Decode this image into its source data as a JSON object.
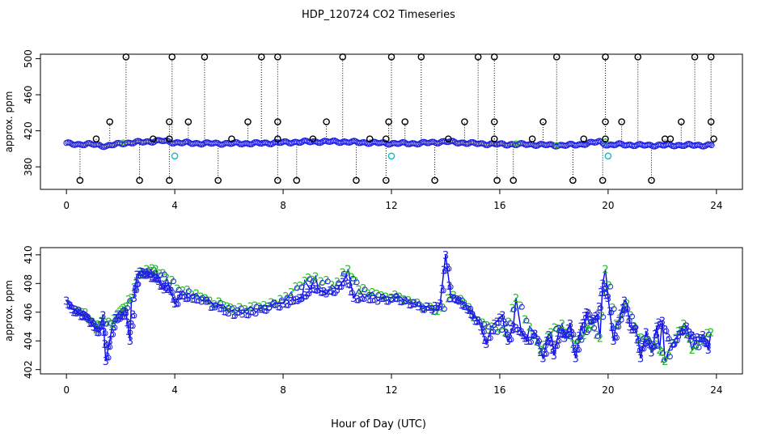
{
  "title": "HDP_120724  CO2 Timeseries",
  "xlabel": "Hour of Day (UTC)",
  "colors": {
    "ch2": "#22bb22",
    "ch3": "#2020e0",
    "line": "#0000ff",
    "outlier": "#000000",
    "cal": "#11bbbb"
  },
  "chart_data": [
    {
      "type": "scatter",
      "name": "top-panel",
      "ylabel": "approx. ppm",
      "xlim": [
        0,
        24
      ],
      "ylim": [
        360,
        500
      ],
      "xticks": [
        0,
        4,
        8,
        12,
        16,
        20,
        24
      ],
      "yticks": [
        380,
        420,
        460,
        500
      ],
      "baseline": [
        [
          0,
          406
        ],
        [
          0.5,
          405
        ],
        [
          1,
          405
        ],
        [
          1.5,
          403
        ],
        [
          2,
          406
        ],
        [
          2.5,
          407
        ],
        [
          3,
          408
        ],
        [
          3.5,
          409
        ],
        [
          4,
          407
        ],
        [
          5,
          406
        ],
        [
          6,
          406
        ],
        [
          7,
          406
        ],
        [
          8,
          407
        ],
        [
          9,
          408
        ],
        [
          10,
          408
        ],
        [
          11,
          407
        ],
        [
          12,
          406
        ],
        [
          13,
          406
        ],
        [
          14,
          408
        ],
        [
          15,
          406
        ],
        [
          16,
          405
        ],
        [
          17,
          405
        ],
        [
          18,
          404
        ],
        [
          18.5,
          404
        ],
        [
          19,
          405
        ],
        [
          19.7,
          408
        ],
        [
          20,
          404
        ],
        [
          20.5,
          405
        ],
        [
          21,
          404
        ],
        [
          22,
          404
        ],
        [
          23,
          404
        ],
        [
          23.8,
          404
        ]
      ],
      "outliers_high": [
        2.2,
        3.9,
        5.1,
        7.2,
        7.8,
        10.2,
        12.0,
        13.1,
        15.2,
        15.8,
        18.1,
        19.9,
        21.1,
        23.2,
        23.8
      ],
      "outliers_430": [
        1.6,
        3.8,
        4.5,
        6.7,
        7.8,
        9.6,
        11.9,
        12.5,
        14.7,
        15.8,
        17.6,
        19.9,
        20.5,
        22.7,
        23.8
      ],
      "outliers_low": [
        0.5,
        2.7,
        3.8,
        5.6,
        7.8,
        8.5,
        10.7,
        11.8,
        13.6,
        15.9,
        16.5,
        18.7,
        19.8,
        21.6
      ],
      "outliers_mid": [
        1.1,
        3.2,
        3.8,
        6.1,
        7.8,
        9.1,
        11.2,
        11.8,
        14.1,
        15.8,
        17.2,
        19.1,
        19.9,
        22.1,
        22.3,
        23.9
      ],
      "cal_points": [
        [
          4.0,
          392
        ],
        [
          12.0,
          392
        ],
        [
          20.0,
          392
        ]
      ]
    },
    {
      "type": "line",
      "name": "bottom-panel",
      "ylabel": "approx. ppm",
      "xlim": [
        0,
        24
      ],
      "ylim": [
        402,
        410
      ],
      "xticks": [
        0,
        4,
        8,
        12,
        16,
        20,
        24
      ],
      "yticks": [
        402,
        404,
        406,
        408,
        410
      ],
      "series": [
        {
          "name": "3",
          "values": [
            [
              0,
              406.8
            ],
            [
              0.2,
              406.2
            ],
            [
              0.4,
              406.0
            ],
            [
              0.6,
              405.8
            ],
            [
              0.8,
              405.6
            ],
            [
              1.0,
              405.0
            ],
            [
              1.2,
              404.6
            ],
            [
              1.35,
              405.8
            ],
            [
              1.45,
              402.6
            ],
            [
              1.6,
              404.0
            ],
            [
              1.8,
              405.6
            ],
            [
              2.0,
              405.8
            ],
            [
              2.2,
              406.0
            ],
            [
              2.35,
              404.0
            ],
            [
              2.5,
              407.0
            ],
            [
              2.6,
              408.6
            ],
            [
              2.8,
              408.8
            ],
            [
              3.0,
              408.6
            ],
            [
              3.2,
              408.5
            ],
            [
              3.4,
              408.2
            ],
            [
              3.6,
              407.6
            ],
            [
              3.8,
              407.8
            ],
            [
              4.0,
              406.6
            ],
            [
              4.2,
              407.2
            ],
            [
              4.5,
              407.0
            ],
            [
              5.0,
              406.8
            ],
            [
              5.5,
              406.4
            ],
            [
              6.0,
              406.0
            ],
            [
              6.5,
              405.9
            ],
            [
              7.0,
              406.0
            ],
            [
              7.5,
              406.4
            ],
            [
              8.0,
              406.6
            ],
            [
              8.4,
              406.8
            ],
            [
              8.7,
              407.0
            ],
            [
              9.0,
              407.6
            ],
            [
              9.3,
              407.6
            ],
            [
              9.6,
              407.3
            ],
            [
              10.0,
              407.6
            ],
            [
              10.3,
              408.4
            ],
            [
              10.6,
              407.0
            ],
            [
              11.0,
              407.0
            ],
            [
              11.5,
              406.8
            ],
            [
              12.0,
              407.0
            ],
            [
              12.5,
              406.8
            ],
            [
              13.0,
              406.4
            ],
            [
              13.5,
              406.2
            ],
            [
              13.8,
              406.6
            ],
            [
              14.0,
              410.0
            ],
            [
              14.2,
              407.0
            ],
            [
              14.5,
              406.8
            ],
            [
              14.8,
              406.2
            ],
            [
              15.0,
              405.8
            ],
            [
              15.3,
              405.0
            ],
            [
              15.5,
              403.8
            ],
            [
              15.8,
              405.2
            ],
            [
              16.1,
              405.8
            ],
            [
              16.3,
              404.0
            ],
            [
              16.5,
              405.0
            ],
            [
              16.8,
              404.6
            ],
            [
              17.0,
              404.0
            ],
            [
              17.3,
              404.5
            ],
            [
              17.6,
              402.8
            ],
            [
              17.8,
              404.4
            ],
            [
              18.0,
              403.0
            ],
            [
              18.2,
              404.8
            ],
            [
              18.4,
              404.2
            ],
            [
              18.6,
              405.2
            ],
            [
              18.8,
              402.8
            ],
            [
              19.0,
              405.0
            ],
            [
              19.2,
              406.0
            ],
            [
              19.4,
              405.4
            ],
            [
              19.6,
              405.8
            ],
            [
              19.8,
              408.0
            ],
            [
              20.0,
              407.0
            ],
            [
              20.2,
              404.0
            ],
            [
              20.4,
              405.4
            ],
            [
              20.6,
              406.8
            ],
            [
              20.8,
              405.0
            ],
            [
              21.0,
              404.8
            ],
            [
              21.2,
              402.8
            ],
            [
              21.4,
              404.6
            ],
            [
              21.6,
              403.2
            ],
            [
              21.8,
              405.0
            ],
            [
              22.0,
              405.4
            ],
            [
              22.3,
              403.6
            ],
            [
              22.6,
              404.4
            ],
            [
              22.9,
              405.0
            ],
            [
              23.2,
              404.0
            ],
            [
              23.5,
              404.4
            ],
            [
              23.7,
              403.4
            ]
          ]
        },
        {
          "name": "2",
          "values": [
            [
              0.3,
              406.2
            ],
            [
              0.7,
              406.0
            ],
            [
              1.1,
              404.8
            ],
            [
              1.3,
              405.4
            ],
            [
              1.7,
              405.2
            ],
            [
              1.9,
              405.9
            ],
            [
              2.1,
              406.3
            ],
            [
              2.4,
              407.0
            ],
            [
              2.7,
              408.8
            ],
            [
              3.1,
              408.9
            ],
            [
              3.3,
              409.0
            ],
            [
              3.7,
              408.4
            ],
            [
              4.3,
              407.5
            ],
            [
              4.8,
              407.3
            ],
            [
              5.3,
              406.8
            ],
            [
              5.8,
              406.5
            ],
            [
              6.2,
              406.2
            ],
            [
              6.8,
              406.4
            ],
            [
              7.3,
              406.5
            ],
            [
              7.7,
              406.6
            ],
            [
              8.3,
              407.4
            ],
            [
              8.8,
              408.2
            ],
            [
              9.2,
              408.5
            ],
            [
              9.8,
              407.9
            ],
            [
              10.4,
              409.0
            ],
            [
              10.8,
              407.6
            ],
            [
              11.3,
              407.4
            ],
            [
              11.8,
              407.1
            ],
            [
              12.3,
              407.1
            ],
            [
              12.8,
              406.6
            ],
            [
              13.3,
              406.4
            ],
            [
              13.7,
              406.1
            ],
            [
              14.3,
              407.2
            ],
            [
              14.7,
              406.6
            ],
            [
              15.2,
              405.4
            ],
            [
              15.7,
              405.0
            ],
            [
              16.2,
              404.6
            ],
            [
              16.6,
              407.0
            ],
            [
              17.1,
              405.0
            ],
            [
              17.5,
              403.4
            ],
            [
              17.9,
              404.6
            ],
            [
              18.3,
              405.2
            ],
            [
              18.7,
              403.8
            ],
            [
              19.1,
              404.4
            ],
            [
              19.3,
              405.2
            ],
            [
              19.7,
              404.2
            ],
            [
              19.9,
              409.0
            ],
            [
              20.3,
              405.2
            ],
            [
              20.7,
              406.6
            ],
            [
              21.1,
              404.2
            ],
            [
              21.5,
              404.0
            ],
            [
              21.9,
              403.4
            ],
            [
              22.1,
              402.6
            ],
            [
              22.5,
              404.2
            ],
            [
              22.8,
              405.2
            ],
            [
              23.1,
              403.4
            ],
            [
              23.4,
              404.0
            ],
            [
              23.8,
              404.6
            ]
          ]
        }
      ]
    }
  ]
}
